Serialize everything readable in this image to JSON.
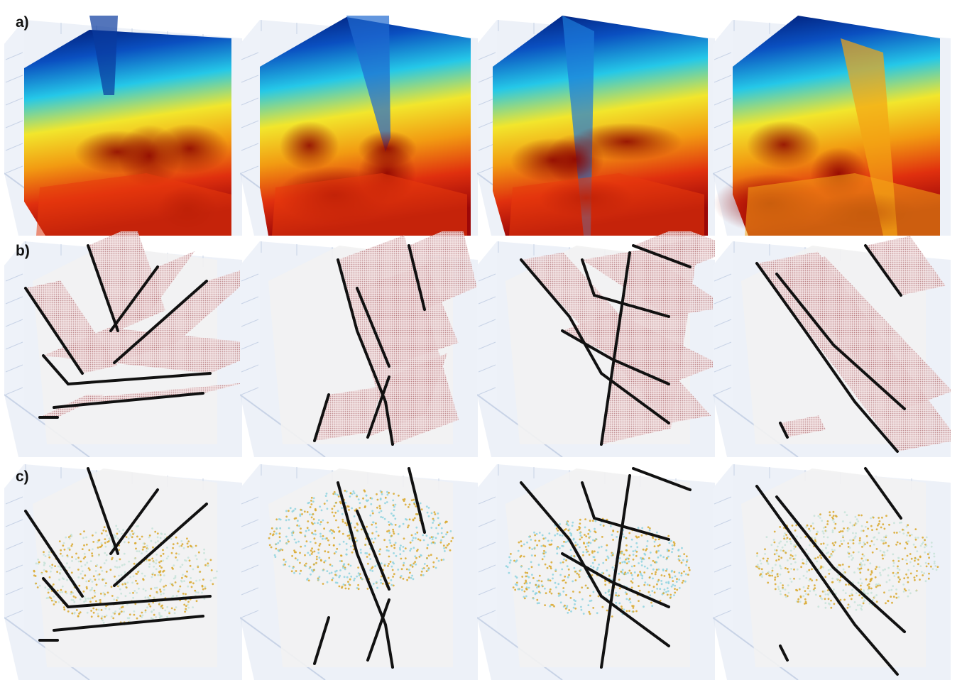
{
  "rows": [
    {
      "label": "a)",
      "kind": "velocity"
    },
    {
      "label": "b)",
      "kind": "fault-surfaces"
    },
    {
      "label": "c)",
      "kind": "point-clouds"
    }
  ],
  "columns": 4,
  "colors": {
    "box_frame": "#dfe6f2",
    "box_grid": "#c8d3e6",
    "slice": "#f2f2f2",
    "fault_line": "#111111",
    "fault_surface": "#8b2d33",
    "point_blue": "#8fd3df",
    "point_yellow": "#d9a82b",
    "point_pale": "#c7e3d8",
    "colormap": [
      "#00186e",
      "#0a4fc0",
      "#25c8e8",
      "#f2e62c",
      "#f29b12",
      "#e0300e",
      "#9c0808"
    ]
  }
}
